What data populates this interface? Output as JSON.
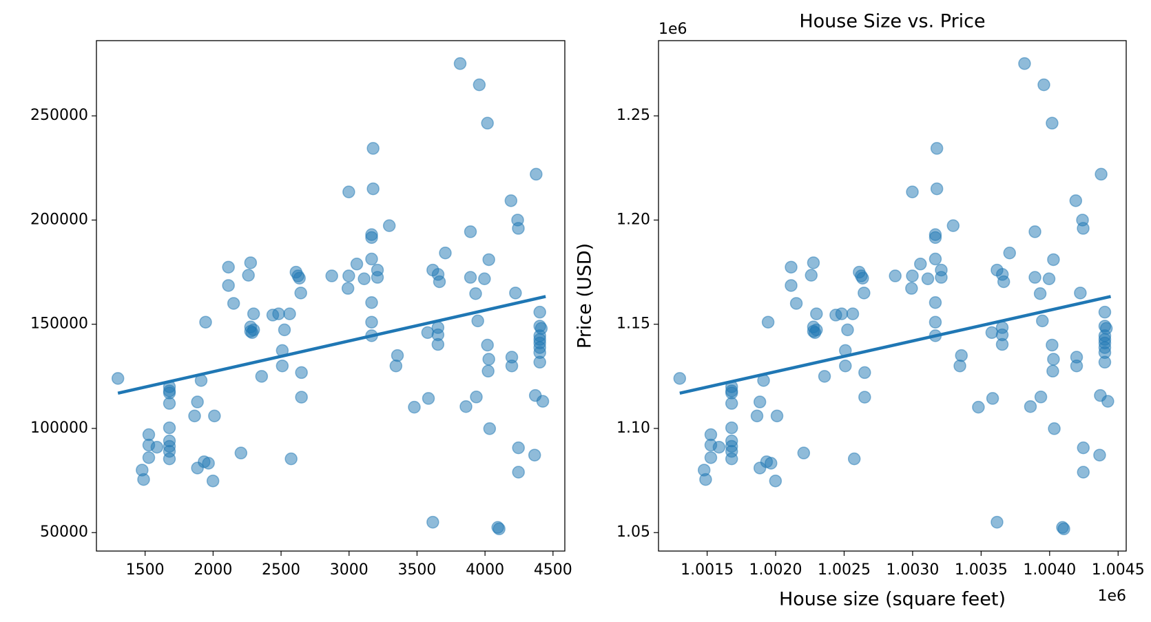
{
  "chart_data": [
    {
      "type": "scatter",
      "xlim": [
        1142,
        4587
      ],
      "ylim": [
        41150,
        286100
      ],
      "xticks": [
        1500,
        2000,
        2500,
        3000,
        3500,
        4000,
        4500
      ],
      "yticks": [
        50000,
        100000,
        150000,
        200000,
        250000
      ],
      "series": [
        {
          "kind": "markers",
          "color": "#1f77b4",
          "alpha": 0.5,
          "x": [
            1300,
            1478,
            1489,
            1527,
            1527,
            1527,
            1587,
            1679,
            1679,
            1679,
            1679,
            1679,
            1679,
            1679,
            1679,
            1679,
            1864,
            1885,
            1885,
            1912,
            1934,
            1945,
            1966,
            1999,
            2010,
            2113,
            2113,
            2151,
            2205,
            2260,
            2276,
            2276,
            2276,
            2287,
            2298,
            2298,
            2357,
            2439,
            2482,
            2563,
            2509,
            2509,
            2525,
            2574,
            2610,
            2625,
            2635,
            2645,
            2650,
            2650,
            2873,
            2998,
            2998,
            2992,
            3057,
            3111,
            3166,
            3166,
            3166,
            3166,
            3166,
            3166,
            3177,
            3177,
            3209,
            3209,
            3296,
            3345,
            3356,
            3480,
            3578,
            3584,
            3616,
            3616,
            3655,
            3665,
            3654,
            3654,
            3654,
            3708,
            3817,
            3893,
            3893,
            3931,
            3936,
            3860,
            3947,
            3958,
            3996,
            4018,
            4028,
            4018,
            4028,
            4023,
            4034,
            4094,
            4104,
            4191,
            4240,
            4245,
            4224,
            4197,
            4197,
            4246,
            4246,
            4365,
            4370,
            4376,
            4403,
            4403,
            4403,
            4403,
            4403,
            4403,
            4403,
            4403,
            4414,
            4425
          ],
          "y": [
            124000,
            80000,
            75500,
            97000,
            92000,
            86000,
            91000,
            118000,
            120000,
            117000,
            112000,
            100300,
            94000,
            91400,
            89000,
            85400,
            106000,
            112700,
            81000,
            123000,
            84000,
            151000,
            83300,
            74800,
            106000,
            177400,
            168600,
            160000,
            88200,
            173500,
            179500,
            148700,
            146600,
            146000,
            147300,
            155000,
            125000,
            154400,
            155000,
            155000,
            137400,
            130000,
            147300,
            85400,
            175000,
            173200,
            172100,
            165000,
            126800,
            115000,
            173200,
            213500,
            173200,
            167200,
            178900,
            171800,
            193000,
            191600,
            181300,
            160400,
            151000,
            144500,
            234400,
            215000,
            176000,
            172500,
            197300,
            130000,
            135000,
            110200,
            146000,
            114400,
            176000,
            55000,
            173900,
            170400,
            148400,
            144900,
            140300,
            184200,
            275100,
            194400,
            172500,
            164700,
            115100,
            110500,
            151600,
            264900,
            171800,
            246500,
            181000,
            140000,
            133200,
            127500,
            99900,
            52500,
            51800,
            209300,
            200000,
            196000,
            165000,
            134200,
            130000,
            90700,
            79000,
            87200,
            115800,
            222000,
            155800,
            149100,
            144500,
            142700,
            141000,
            138800,
            136400,
            131800,
            148000,
            113000
          ]
        },
        {
          "kind": "line",
          "color": "#1f77b4",
          "x": [
            1300,
            4446
          ],
          "y": [
            116900,
            163300
          ]
        }
      ]
    },
    {
      "type": "scatter",
      "title": "House Size vs. Price",
      "xlabel": "House size (square feet)",
      "ylabel": "Price (USD)",
      "x_offset_text": "1e6",
      "y_offset_text": "1e6",
      "xlim": [
        1001145,
        1004559
      ],
      "ylim": [
        1041150,
        1286100
      ],
      "xticks": [
        {
          "value": 1001500,
          "label": "1.0015"
        },
        {
          "value": 1002000,
          "label": "1.0020"
        },
        {
          "value": 1002500,
          "label": "1.0025"
        },
        {
          "value": 1003000,
          "label": "1.0030"
        },
        {
          "value": 1003500,
          "label": "1.0035"
        },
        {
          "value": 1004000,
          "label": "1.0040"
        },
        {
          "value": 1004500,
          "label": "1.0045"
        }
      ],
      "yticks": [
        {
          "value": 1050000,
          "label": "1.05"
        },
        {
          "value": 1100000,
          "label": "1.10"
        },
        {
          "value": 1150000,
          "label": "1.15"
        },
        {
          "value": 1200000,
          "label": "1.20"
        },
        {
          "value": 1250000,
          "label": "1.25"
        }
      ],
      "series": [
        {
          "kind": "markers",
          "color": "#1f77b4",
          "alpha": 0.5,
          "x": [
            1001300,
            1001478,
            1001489,
            1001527,
            1001527,
            1001527,
            1001587,
            1001679,
            1001679,
            1001679,
            1001679,
            1001679,
            1001679,
            1001679,
            1001679,
            1001679,
            1001864,
            1001885,
            1001885,
            1001912,
            1001934,
            1001945,
            1001966,
            1001999,
            1002010,
            1002113,
            1002113,
            1002151,
            1002205,
            1002260,
            1002276,
            1002276,
            1002276,
            1002287,
            1002298,
            1002298,
            1002357,
            1002439,
            1002482,
            1002563,
            1002509,
            1002509,
            1002525,
            1002574,
            1002610,
            1002625,
            1002635,
            1002645,
            1002650,
            1002650,
            1002873,
            1002998,
            1002998,
            1002992,
            1003057,
            1003111,
            1003166,
            1003166,
            1003166,
            1003166,
            1003166,
            1003166,
            1003177,
            1003177,
            1003209,
            1003209,
            1003296,
            1003345,
            1003356,
            1003480,
            1003578,
            1003584,
            1003616,
            1003616,
            1003655,
            1003665,
            1003654,
            1003654,
            1003654,
            1003708,
            1003817,
            1003893,
            1003893,
            1003931,
            1003936,
            1003860,
            1003947,
            1003958,
            1003996,
            1004018,
            1004028,
            1004018,
            1004028,
            1004023,
            1004034,
            1004094,
            1004104,
            1004191,
            1004240,
            1004245,
            1004224,
            1004197,
            1004197,
            1004246,
            1004246,
            1004365,
            1004370,
            1004376,
            1004403,
            1004403,
            1004403,
            1004403,
            1004403,
            1004403,
            1004403,
            1004403,
            1004414,
            1004425
          ],
          "y": [
            1124000,
            1080000,
            1075500,
            1097000,
            1092000,
            1086000,
            1091000,
            1118000,
            1120000,
            1117000,
            1112000,
            1100300,
            1094000,
            1091400,
            1089000,
            1085400,
            1106000,
            1112700,
            1081000,
            1123000,
            1084000,
            1151000,
            1083300,
            1074800,
            1106000,
            1177400,
            1168600,
            1160000,
            1088200,
            1173500,
            1179500,
            1148700,
            1146600,
            1146000,
            1147300,
            1155000,
            1125000,
            1154400,
            1155000,
            1155000,
            1137400,
            1130000,
            1147300,
            1085400,
            1175000,
            1173200,
            1172100,
            1165000,
            1126800,
            1115000,
            1173200,
            1213500,
            1173200,
            1167200,
            1178900,
            1171800,
            1193000,
            1191600,
            1181300,
            1160400,
            1151000,
            1144500,
            1234400,
            1215000,
            1176000,
            1172500,
            1197300,
            1130000,
            1135000,
            1110200,
            1146000,
            1114400,
            1176000,
            1055000,
            1173900,
            1170400,
            1148400,
            1144900,
            1140300,
            1184200,
            1275100,
            1194400,
            1172500,
            1164700,
            1115100,
            1110500,
            1151600,
            1264900,
            1171800,
            1246500,
            1181000,
            1140000,
            1133200,
            1127500,
            1099900,
            1052500,
            1051800,
            1209300,
            1200000,
            1196000,
            1165000,
            1134200,
            1130000,
            1090700,
            1079000,
            1087200,
            1115800,
            1222000,
            1155800,
            1149100,
            1144500,
            1142700,
            1141000,
            1138800,
            1136400,
            1131800,
            1148000,
            1113000
          ]
        },
        {
          "kind": "line",
          "color": "#1f77b4",
          "x": [
            1001300,
            1004446
          ],
          "y": [
            1116900,
            1163300
          ]
        }
      ]
    }
  ]
}
